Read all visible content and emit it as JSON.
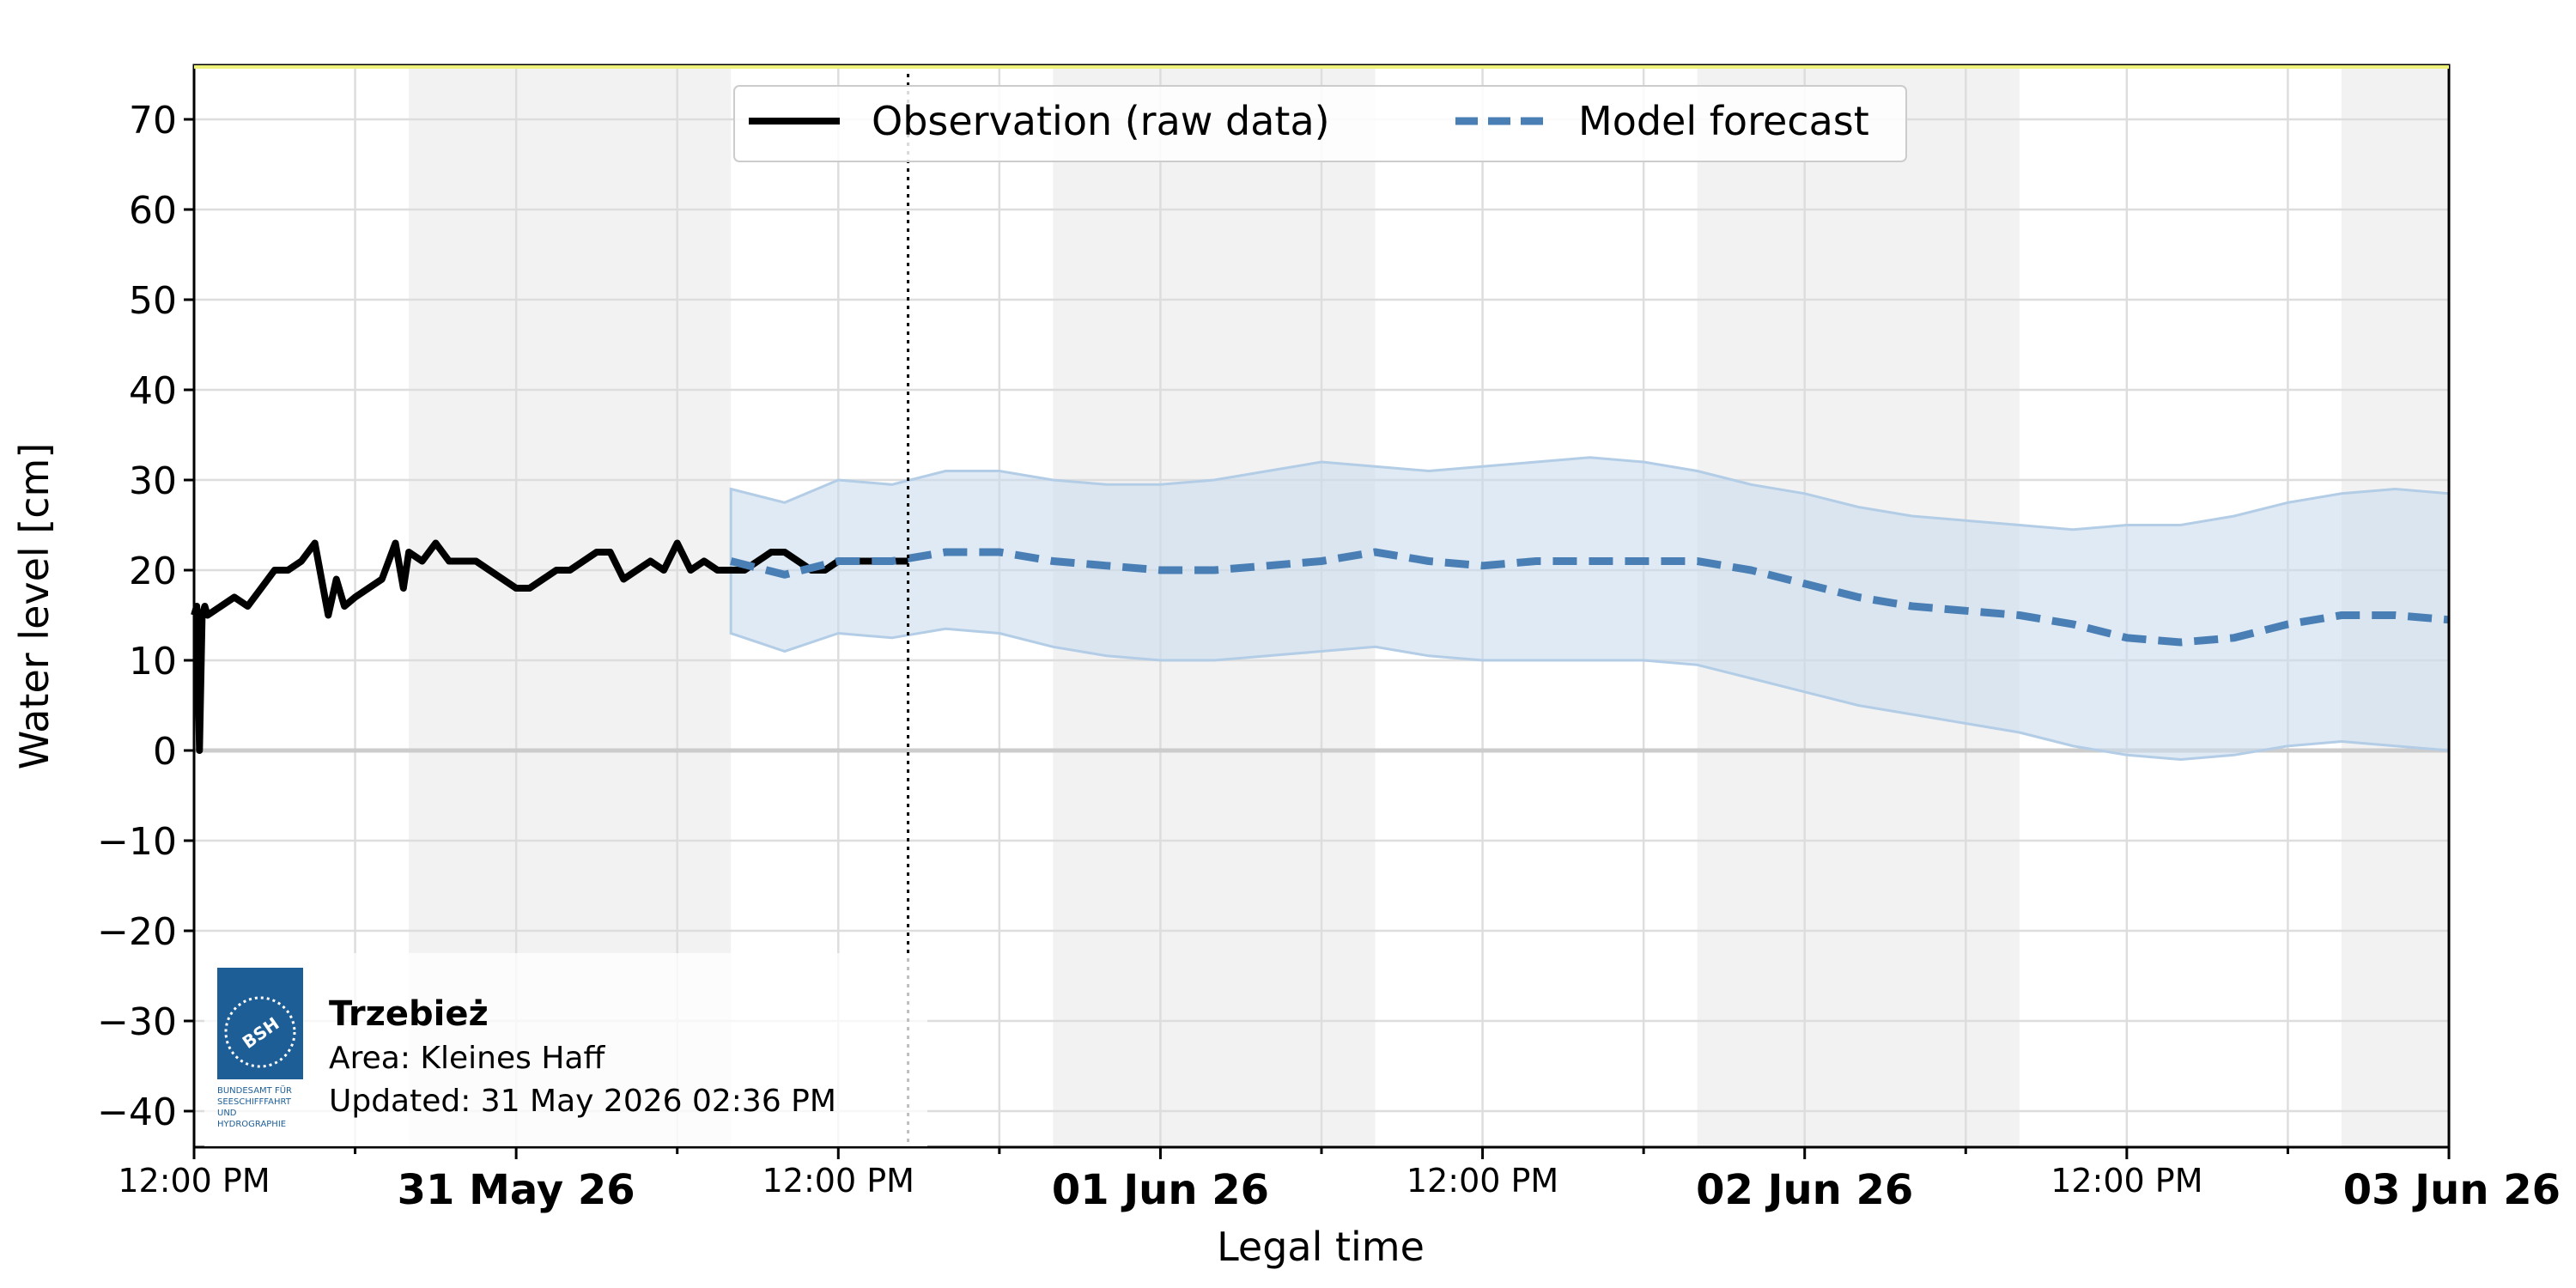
{
  "chart_data": {
    "type": "line",
    "xlabel": "Legal time",
    "ylabel": "Water level [cm]",
    "ylim": [
      -44,
      76
    ],
    "yticks": [
      70,
      60,
      50,
      40,
      30,
      20,
      10,
      0,
      -10,
      -20,
      -30,
      -40
    ],
    "ytick_labels": [
      "70",
      "60",
      "50",
      "40",
      "30",
      "20",
      "10",
      "0",
      "−10",
      "−20",
      "−30",
      "−40"
    ],
    "xlim_hours": [
      0,
      84
    ],
    "xticks_minor": [
      {
        "h": 0,
        "label": "12:00 PM"
      },
      {
        "h": 24,
        "label": "12:00 PM"
      },
      {
        "h": 48,
        "label": "12:00 PM"
      },
      {
        "h": 72,
        "label": "12:00 PM"
      }
    ],
    "xticks_major": [
      {
        "h": 12,
        "label": "31 May 26"
      },
      {
        "h": 36,
        "label": "01 Jun 26"
      },
      {
        "h": 60,
        "label": "02 Jun 26"
      },
      {
        "h": 84,
        "label": "03 Jun 26"
      }
    ],
    "now_hours": 26.6,
    "night_bands_hours": [
      [
        8,
        20
      ],
      [
        32,
        44
      ],
      [
        56,
        68
      ],
      [
        80,
        84
      ]
    ],
    "legend": [
      "Observation (raw data)",
      "Model forecast"
    ],
    "series": [
      {
        "name": "Observation (raw data)",
        "color": "#000000",
        "x": [
          0,
          0.1,
          0.2,
          0.3,
          0.4,
          0.5,
          1.0,
          1.5,
          2.0,
          2.5,
          3.0,
          3.5,
          4.0,
          4.5,
          5.0,
          5.3,
          5.6,
          6.0,
          6.5,
          7.0,
          7.5,
          7.8,
          8.0,
          8.5,
          9.0,
          9.5,
          10.0,
          10.5,
          11.0,
          11.5,
          12.0,
          12.5,
          13.0,
          13.5,
          14.0,
          14.5,
          15.0,
          15.5,
          16.0,
          16.5,
          17.0,
          17.5,
          18.0,
          18.5,
          19.0,
          19.5,
          20.0,
          20.5,
          21.0,
          21.5,
          22.0,
          22.5,
          23.0,
          23.5,
          24.0,
          24.5,
          25.0,
          25.5,
          26.0,
          26.6
        ],
        "y": [
          15,
          16,
          0,
          15,
          16,
          15,
          16,
          17,
          16,
          18,
          20,
          20,
          21,
          23,
          15,
          19,
          16,
          17,
          18,
          19,
          23,
          18,
          22,
          21,
          23,
          21,
          21,
          21,
          20,
          19,
          18,
          18,
          19,
          20,
          20,
          21,
          22,
          22,
          19,
          20,
          21,
          20,
          23,
          20,
          21,
          20,
          20,
          20,
          21,
          22,
          22,
          21,
          20,
          20,
          21,
          21,
          21,
          21,
          21,
          21
        ]
      },
      {
        "name": "Model forecast",
        "color": "#4a7fb5",
        "x": [
          20,
          22,
          24,
          26,
          28,
          30,
          32,
          34,
          36,
          38,
          40,
          42,
          44,
          46,
          48,
          50,
          52,
          54,
          56,
          58,
          60,
          62,
          64,
          66,
          68,
          70,
          72,
          74,
          76,
          78,
          80,
          82,
          84
        ],
        "y": [
          21,
          19.5,
          21,
          21,
          22,
          22,
          21,
          20.5,
          20,
          20,
          20.5,
          21,
          22,
          21,
          20.5,
          21,
          21,
          21,
          21,
          20,
          18.5,
          17,
          16,
          15.5,
          15,
          14,
          12.5,
          12,
          12.5,
          14,
          15,
          15,
          14.5
        ],
        "band_upper": [
          29,
          27.5,
          30,
          29.5,
          31,
          31,
          30,
          29.5,
          29.5,
          30,
          31,
          32,
          31.5,
          31,
          31.5,
          32,
          32.5,
          32,
          31,
          29.5,
          28.5,
          27,
          26,
          25.5,
          25,
          24.5,
          25,
          25,
          26,
          27.5,
          28.5,
          29,
          28.5
        ],
        "band_lower": [
          13,
          11,
          13,
          12.5,
          13.5,
          13,
          11.5,
          10.5,
          10,
          10,
          10.5,
          11,
          11.5,
          10.5,
          10,
          10,
          10,
          10,
          9.5,
          8,
          6.5,
          5,
          4,
          3,
          2,
          0.5,
          -0.5,
          -1,
          -0.5,
          0.5,
          1,
          0.5,
          0
        ]
      }
    ]
  },
  "info": {
    "station": "Trzebież",
    "area": "Area: Kleines Haff",
    "updated": "Updated: 31 May 2026 02:36 PM",
    "logo_letters": "BSH",
    "logo_lines": [
      "BUNDESAMT FÜR",
      "SEESCHIFFFAHRT",
      "UND",
      "HYDROGRAPHIE"
    ]
  },
  "colors": {
    "observation": "#000000",
    "forecast": "#4a7fb5",
    "band": "#c9dcee",
    "night": "#f2f2f2",
    "grid": "#dddddd",
    "logo": "#1d5e97"
  }
}
